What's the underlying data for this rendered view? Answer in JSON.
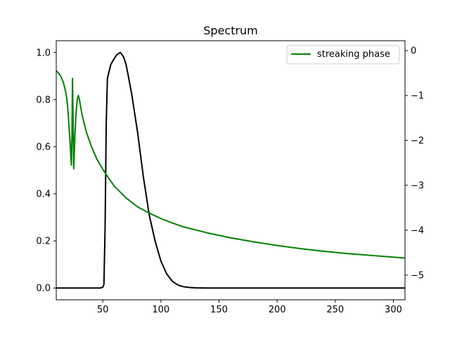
{
  "chart_data": {
    "type": "line",
    "title": "Spectrum",
    "xlabel": "",
    "ylabel_left": "",
    "ylabel_right": "",
    "xlim": [
      10,
      310
    ],
    "ylim_left": [
      -0.05,
      1.05
    ],
    "ylim_right": [
      -5.55,
      0.22
    ],
    "x_ticks": [
      50,
      100,
      150,
      200,
      250,
      300
    ],
    "y_left_ticks": [
      0.0,
      0.2,
      0.4,
      0.6,
      0.8,
      1.0
    ],
    "y_right_ticks": [
      0,
      -1,
      -2,
      -3,
      -4,
      -5
    ],
    "grid": false,
    "legend": {
      "placement": "top-right",
      "entries": [
        "streaking phase"
      ]
    },
    "series": [
      {
        "axis": "left",
        "color": "#000000",
        "x": [
          10,
          30,
          48,
          50,
          51,
          52,
          53,
          54,
          55,
          57,
          60,
          62,
          64,
          65,
          66,
          68,
          70,
          72,
          75,
          80,
          85,
          90,
          95,
          100,
          105,
          110,
          115,
          120,
          125,
          130,
          135,
          140,
          150,
          200,
          250,
          310
        ],
        "y": [
          0,
          0,
          0,
          0.003,
          0.015,
          0.25,
          0.7,
          0.89,
          0.91,
          0.95,
          0.975,
          0.99,
          0.997,
          1.0,
          0.995,
          0.98,
          0.95,
          0.9,
          0.82,
          0.66,
          0.47,
          0.31,
          0.2,
          0.115,
          0.06,
          0.028,
          0.012,
          0.005,
          0.002,
          0.0005,
          0.0002,
          0,
          0,
          0,
          0,
          0
        ]
      },
      {
        "name": "streaking phase",
        "axis": "right",
        "color": "#008000",
        "x": [
          10,
          12,
          14,
          16,
          18,
          19,
          20,
          21,
          22,
          23,
          23.5,
          24,
          24.5,
          25,
          25.5,
          26,
          27,
          28,
          29,
          30,
          31,
          32,
          34,
          36,
          40,
          45,
          50,
          55,
          60,
          70,
          80,
          90,
          100,
          110,
          120,
          140,
          160,
          180,
          200,
          220,
          240,
          260,
          280,
          300,
          310
        ],
        "y": [
          -0.45,
          -0.5,
          -0.58,
          -0.7,
          -0.9,
          -1.05,
          -1.3,
          -1.7,
          -2.1,
          -2.55,
          -1.9,
          -0.62,
          -1.6,
          -2.63,
          -2.3,
          -1.9,
          -1.4,
          -1.1,
          -1.0,
          -1.1,
          -1.25,
          -1.4,
          -1.62,
          -1.82,
          -2.12,
          -2.42,
          -2.64,
          -2.84,
          -3.02,
          -3.28,
          -3.48,
          -3.62,
          -3.74,
          -3.84,
          -3.93,
          -4.06,
          -4.17,
          -4.26,
          -4.34,
          -4.41,
          -4.47,
          -4.52,
          -4.56,
          -4.6,
          -4.62
        ]
      }
    ]
  }
}
